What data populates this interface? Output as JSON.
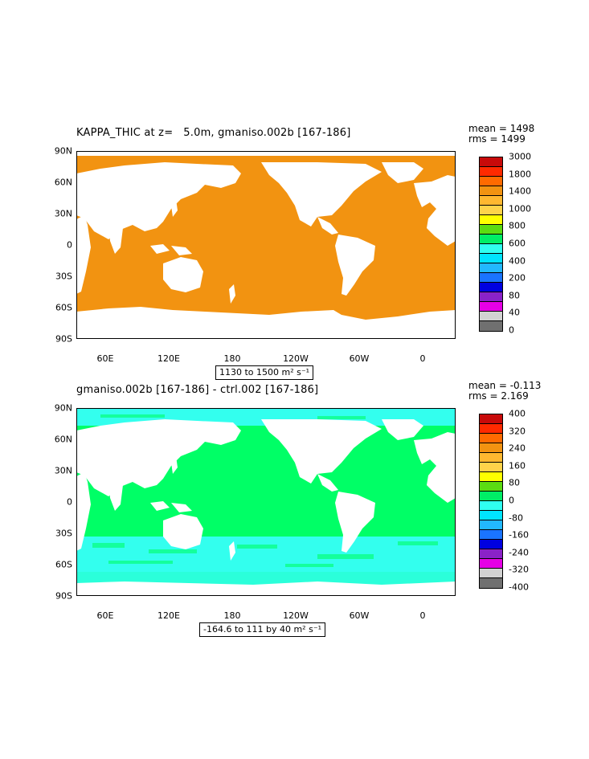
{
  "panels": [
    {
      "title": "KAPPA_THIC at z=   5.0m, gmaniso.002b [167-186]",
      "stats": [
        "mean = 1498",
        "rms = 1499"
      ],
      "range": "1130 to 1500 m² s⁻¹",
      "fill_color": "#f29311",
      "lat_labels": [
        "90N",
        "60N",
        "30N",
        "0",
        "30S",
        "60S",
        "90S"
      ],
      "lon_labels": [
        "60E",
        "120E",
        "180",
        "120W",
        "60W",
        "0"
      ],
      "colorbar": {
        "colors": [
          "#c80a0a",
          "#ff2a00",
          "#ff6a00",
          "#f29311",
          "#ffb830",
          "#ffd34a",
          "#ffff00",
          "#5bdc12",
          "#00ee66",
          "#2ffff0",
          "#00e4ff",
          "#22b8ff",
          "#1a74ff",
          "#0000e0",
          "#8a22c8",
          "#e600e6",
          "#d2d2d2",
          "#707070"
        ],
        "labels": [
          "3000",
          "1800",
          "1400",
          "1000",
          "800",
          "600",
          "400",
          "200",
          "80",
          "40",
          "0"
        ]
      }
    },
    {
      "title": "gmaniso.002b [167-186] - ctrl.002 [167-186]",
      "stats": [
        "mean = -0.113",
        "rms = 2.169"
      ],
      "range": "-164.6 to 111 by 40 m² s⁻¹",
      "fill_color": "#00ff66",
      "noise_color": "#33ffee",
      "lat_labels": [
        "90N",
        "60N",
        "30N",
        "0",
        "30S",
        "60S",
        "90S"
      ],
      "lon_labels": [
        "60E",
        "120E",
        "180",
        "120W",
        "60W",
        "0"
      ],
      "colorbar": {
        "colors": [
          "#c80a0a",
          "#ff2a00",
          "#ff6a00",
          "#f29311",
          "#ffb830",
          "#ffd34a",
          "#ffff00",
          "#5bdc12",
          "#00ee66",
          "#2ffff0",
          "#00e4ff",
          "#22b8ff",
          "#1a74ff",
          "#0000e0",
          "#8a22c8",
          "#e600e6",
          "#d2d2d2",
          "#707070"
        ],
        "labels": [
          "400",
          "320",
          "240",
          "160",
          "80",
          "0",
          "-80",
          "-160",
          "-240",
          "-320",
          "-400"
        ]
      }
    }
  ]
}
